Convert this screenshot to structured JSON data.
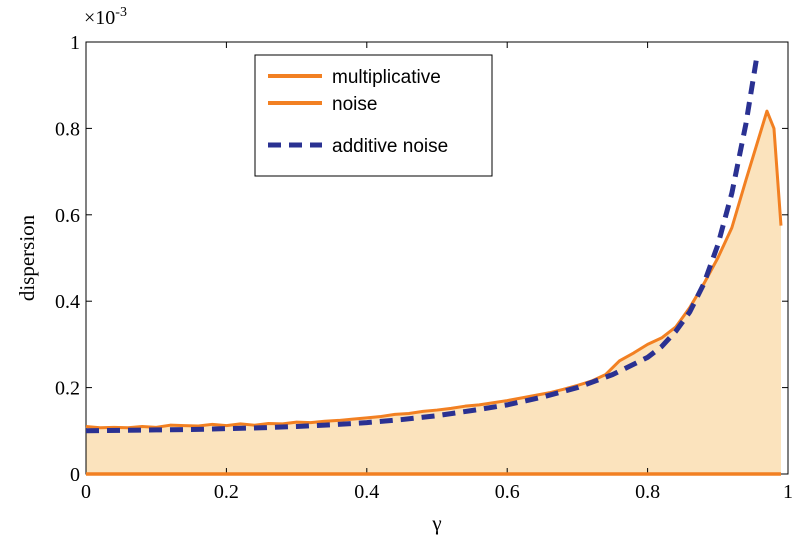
{
  "chart_data": {
    "type": "line",
    "xlabel": "γ",
    "ylabel": "dispersion",
    "exponent_label": "×10",
    "exponent_power": "-3",
    "xlim": [
      0,
      1
    ],
    "ylim": [
      0,
      1
    ],
    "x_ticks": [
      0,
      0.2,
      0.4,
      0.6,
      0.8,
      1
    ],
    "x_tick_labels": [
      "0",
      "0.2",
      "0.4",
      "0.6",
      "0.8",
      "1"
    ],
    "y_ticks": [
      0,
      0.2,
      0.4,
      0.6,
      0.8,
      1
    ],
    "y_tick_labels": [
      "0",
      "0.2",
      "0.4",
      "0.6",
      "0.8",
      "1"
    ],
    "grid": false,
    "legend_position": "top-center",
    "series": [
      {
        "name": "multiplicative noise",
        "legend_lines": [
          "multiplicative",
          "noise"
        ],
        "style": "solid",
        "fill": true,
        "color": "#f28022",
        "fill_color": "#fbe3bd",
        "x": [
          0,
          0.02,
          0.04,
          0.06,
          0.08,
          0.1,
          0.12,
          0.14,
          0.16,
          0.18,
          0.2,
          0.22,
          0.24,
          0.26,
          0.28,
          0.3,
          0.32,
          0.34,
          0.36,
          0.38,
          0.4,
          0.42,
          0.44,
          0.46,
          0.48,
          0.5,
          0.52,
          0.54,
          0.56,
          0.58,
          0.6,
          0.62,
          0.64,
          0.66,
          0.68,
          0.7,
          0.72,
          0.74,
          0.76,
          0.78,
          0.8,
          0.82,
          0.84,
          0.86,
          0.88,
          0.9,
          0.92,
          0.94,
          0.955,
          0.97,
          0.98,
          0.99
        ],
        "values": [
          0.11,
          0.107,
          0.108,
          0.107,
          0.11,
          0.108,
          0.113,
          0.112,
          0.111,
          0.115,
          0.112,
          0.116,
          0.113,
          0.117,
          0.116,
          0.12,
          0.119,
          0.122,
          0.124,
          0.127,
          0.13,
          0.133,
          0.138,
          0.14,
          0.145,
          0.148,
          0.152,
          0.157,
          0.16,
          0.165,
          0.17,
          0.176,
          0.182,
          0.188,
          0.196,
          0.205,
          0.215,
          0.23,
          0.262,
          0.28,
          0.3,
          0.315,
          0.34,
          0.385,
          0.44,
          0.5,
          0.57,
          0.68,
          0.76,
          0.84,
          0.8,
          0.575
        ]
      },
      {
        "name": "additive noise",
        "legend_lines": [
          "additive noise"
        ],
        "style": "dashed",
        "fill": false,
        "color": "#2a3192",
        "x": [
          0,
          0.05,
          0.1,
          0.15,
          0.2,
          0.25,
          0.3,
          0.35,
          0.4,
          0.45,
          0.5,
          0.55,
          0.6,
          0.65,
          0.7,
          0.75,
          0.8,
          0.82,
          0.84,
          0.86,
          0.88,
          0.9,
          0.92,
          0.94,
          0.955
        ],
        "values": [
          0.1,
          0.101,
          0.102,
          0.103,
          0.105,
          0.107,
          0.11,
          0.114,
          0.119,
          0.126,
          0.135,
          0.147,
          0.16,
          0.178,
          0.2,
          0.23,
          0.27,
          0.295,
          0.33,
          0.375,
          0.44,
          0.53,
          0.65,
          0.81,
          0.96
        ]
      }
    ]
  }
}
